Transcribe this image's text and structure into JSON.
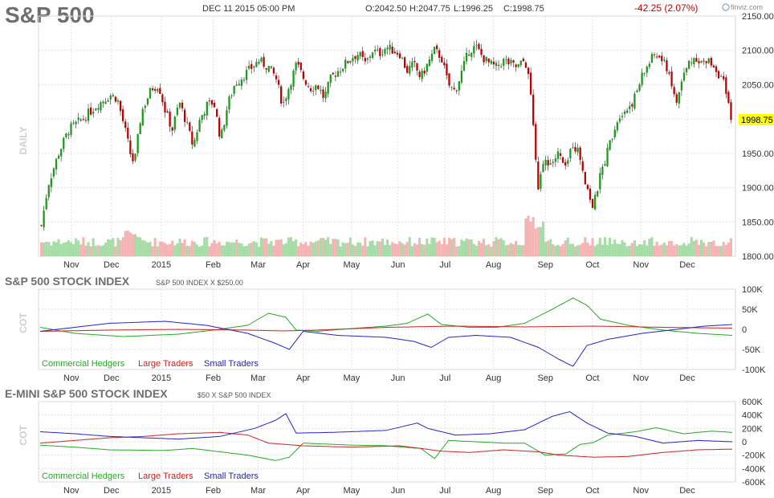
{
  "header": {
    "title": "S&P 500",
    "datetime": "DEC 11 2015 05:00 PM",
    "open": "O:2042.50",
    "high": "H:2047.75",
    "low": "L:1996.25",
    "close": "C:1998.75",
    "change": "-42.25 (2.07%)",
    "logo": "finviz.com",
    "last_price": "1998.75",
    "side_label": "DAILY"
  },
  "colors": {
    "up": "#1a9b1a",
    "down": "#c00000",
    "vol_up": "#a6dca6",
    "vol_down": "#f4b4b4",
    "commercial": "#22aa22",
    "large": "#cc2222",
    "small": "#2222cc",
    "price_tag": "#ffff00"
  },
  "months": [
    {
      "label": "Nov",
      "t": 0.045
    },
    {
      "label": "Dec",
      "t": 0.103
    },
    {
      "label": "2015",
      "t": 0.175
    },
    {
      "label": "Feb",
      "t": 0.25
    },
    {
      "label": "Mar",
      "t": 0.315
    },
    {
      "label": "Apr",
      "t": 0.38
    },
    {
      "label": "May",
      "t": 0.45
    },
    {
      "label": "Jun",
      "t": 0.517
    },
    {
      "label": "Jul",
      "t": 0.585
    },
    {
      "label": "Aug",
      "t": 0.655
    },
    {
      "label": "Sep",
      "t": 0.73
    },
    {
      "label": "Oct",
      "t": 0.798
    },
    {
      "label": "Nov",
      "t": 0.868
    },
    {
      "label": "Dec",
      "t": 0.935
    }
  ],
  "chart_data": [
    {
      "type": "candlestick",
      "name": "S&P 500 daily",
      "ylim": [
        1800,
        2150
      ],
      "yticks": [
        1800,
        1850,
        1900,
        1950,
        2000,
        2050,
        2100,
        2150
      ],
      "ytick_labels": [
        "1800.00",
        "1850.00",
        "1900.00",
        "1950.00",
        "2000.00",
        "2050.00",
        "2100.00",
        "2150.00"
      ],
      "close_path": [
        [
          0.0,
          1845
        ],
        [
          0.01,
          1905
        ],
        [
          0.025,
          1950
        ],
        [
          0.04,
          1985
        ],
        [
          0.06,
          2000
        ],
        [
          0.08,
          2020
        ],
        [
          0.1,
          2035
        ],
        [
          0.11,
          2030
        ],
        [
          0.12,
          1990
        ],
        [
          0.13,
          1945
        ],
        [
          0.135,
          1935
        ],
        [
          0.145,
          2010
        ],
        [
          0.16,
          2045
        ],
        [
          0.17,
          2050
        ],
        [
          0.18,
          2010
        ],
        [
          0.19,
          1985
        ],
        [
          0.2,
          2025
        ],
        [
          0.21,
          1995
        ],
        [
          0.22,
          1960
        ],
        [
          0.23,
          2000
        ],
        [
          0.24,
          2020
        ],
        [
          0.25,
          2025
        ],
        [
          0.26,
          1970
        ],
        [
          0.27,
          2020
        ],
        [
          0.28,
          2050
        ],
        [
          0.3,
          2070
        ],
        [
          0.315,
          2085
        ],
        [
          0.33,
          2075
        ],
        [
          0.34,
          2060
        ],
        [
          0.35,
          2020
        ],
        [
          0.36,
          2050
        ],
        [
          0.37,
          2080
        ],
        [
          0.38,
          2060
        ],
        [
          0.39,
          2045
        ],
        [
          0.4,
          2050
        ],
        [
          0.41,
          2030
        ],
        [
          0.42,
          2060
        ],
        [
          0.44,
          2080
        ],
        [
          0.45,
          2090
        ],
        [
          0.46,
          2095
        ],
        [
          0.47,
          2080
        ],
        [
          0.48,
          2100
        ],
        [
          0.49,
          2095
        ],
        [
          0.5,
          2105
        ],
        [
          0.51,
          2100
        ],
        [
          0.52,
          2095
        ],
        [
          0.53,
          2070
        ],
        [
          0.54,
          2080
        ],
        [
          0.55,
          2060
        ],
        [
          0.56,
          2080
        ],
        [
          0.57,
          2100
        ],
        [
          0.58,
          2090
        ],
        [
          0.59,
          2050
        ],
        [
          0.6,
          2040
        ],
        [
          0.61,
          2070
        ],
        [
          0.62,
          2100
        ],
        [
          0.63,
          2105
        ],
        [
          0.64,
          2090
        ],
        [
          0.65,
          2080
        ],
        [
          0.66,
          2075
        ],
        [
          0.67,
          2085
        ],
        [
          0.68,
          2080
        ],
        [
          0.69,
          2075
        ],
        [
          0.7,
          2085
        ],
        [
          0.705,
          2075
        ],
        [
          0.71,
          2030
        ],
        [
          0.715,
          1960
        ],
        [
          0.72,
          1900
        ],
        [
          0.73,
          1940
        ],
        [
          0.74,
          1935
        ],
        [
          0.75,
          1950
        ],
        [
          0.76,
          1925
        ],
        [
          0.77,
          1965
        ],
        [
          0.78,
          1950
        ],
        [
          0.79,
          1905
        ],
        [
          0.8,
          1870
        ],
        [
          0.81,
          1915
        ],
        [
          0.82,
          1950
        ],
        [
          0.83,
          1985
        ],
        [
          0.84,
          2010
        ],
        [
          0.85,
          2015
        ],
        [
          0.86,
          2030
        ],
        [
          0.87,
          2060
        ],
        [
          0.88,
          2080
        ],
        [
          0.89,
          2095
        ],
        [
          0.9,
          2085
        ],
        [
          0.91,
          2070
        ],
        [
          0.92,
          2020
        ],
        [
          0.93,
          2060
        ],
        [
          0.94,
          2085
        ],
        [
          0.95,
          2090
        ],
        [
          0.96,
          2080
        ],
        [
          0.97,
          2085
        ],
        [
          0.98,
          2070
        ],
        [
          0.99,
          2050
        ],
        [
          1.0,
          1999
        ]
      ],
      "last_close": 1998.75
    },
    {
      "type": "line",
      "title": "S&P 500 STOCK INDEX",
      "subtitle": "S&P 500 INDEX X $250.00",
      "ylim": [
        -100000,
        100000
      ],
      "yticks": [
        100000,
        50000,
        0,
        -50000,
        -100000
      ],
      "ytick_labels": [
        "100K",
        "50K",
        "0",
        "-50K",
        "-100K"
      ],
      "series": [
        {
          "name": "Commercial Hedgers",
          "points": [
            [
              0,
              5000
            ],
            [
              0.05,
              -10000
            ],
            [
              0.12,
              -18000
            ],
            [
              0.2,
              -12000
            ],
            [
              0.25,
              -2000
            ],
            [
              0.3,
              10000
            ],
            [
              0.33,
              40000
            ],
            [
              0.355,
              30000
            ],
            [
              0.37,
              -2000
            ],
            [
              0.4,
              -5000
            ],
            [
              0.45,
              2000
            ],
            [
              0.5,
              8000
            ],
            [
              0.53,
              15000
            ],
            [
              0.56,
              38000
            ],
            [
              0.58,
              12000
            ],
            [
              0.62,
              5000
            ],
            [
              0.66,
              5000
            ],
            [
              0.7,
              15000
            ],
            [
              0.74,
              50000
            ],
            [
              0.77,
              78000
            ],
            [
              0.79,
              60000
            ],
            [
              0.81,
              25000
            ],
            [
              0.85,
              10000
            ],
            [
              0.9,
              -2000
            ],
            [
              0.95,
              -10000
            ],
            [
              1.0,
              -15000
            ]
          ]
        },
        {
          "name": "Large Traders",
          "points": [
            [
              0,
              -5000
            ],
            [
              0.1,
              -2000
            ],
            [
              0.2,
              0
            ],
            [
              0.3,
              -2000
            ],
            [
              0.35,
              -4000
            ],
            [
              0.4,
              -2000
            ],
            [
              0.5,
              5000
            ],
            [
              0.6,
              8000
            ],
            [
              0.7,
              6000
            ],
            [
              0.8,
              8000
            ],
            [
              0.9,
              5000
            ],
            [
              1.0,
              3000
            ]
          ]
        },
        {
          "name": "Small Traders",
          "points": [
            [
              0,
              -5000
            ],
            [
              0.05,
              5000
            ],
            [
              0.1,
              15000
            ],
            [
              0.18,
              20000
            ],
            [
              0.24,
              10000
            ],
            [
              0.3,
              -10000
            ],
            [
              0.34,
              -35000
            ],
            [
              0.36,
              -50000
            ],
            [
              0.38,
              -5000
            ],
            [
              0.43,
              -15000
            ],
            [
              0.5,
              -20000
            ],
            [
              0.54,
              -30000
            ],
            [
              0.565,
              -45000
            ],
            [
              0.59,
              -20000
            ],
            [
              0.63,
              -15000
            ],
            [
              0.68,
              -20000
            ],
            [
              0.72,
              -45000
            ],
            [
              0.75,
              -75000
            ],
            [
              0.77,
              -92000
            ],
            [
              0.79,
              -40000
            ],
            [
              0.82,
              -25000
            ],
            [
              0.87,
              -10000
            ],
            [
              0.92,
              0
            ],
            [
              0.96,
              8000
            ],
            [
              1.0,
              12000
            ]
          ]
        }
      ]
    },
    {
      "type": "line",
      "title": "E-MINI S&P 500 STOCK INDEX",
      "subtitle": "$50 X S&P 500 INDEX",
      "ylim": [
        -600000,
        600000
      ],
      "yticks": [
        600000,
        400000,
        200000,
        0,
        -200000,
        -400000,
        -600000
      ],
      "ytick_labels": [
        "600K",
        "400K",
        "200K",
        "0",
        "-200K",
        "-400K",
        "-600K"
      ],
      "series": [
        {
          "name": "Commercial Hedgers",
          "points": [
            [
              0,
              -50000
            ],
            [
              0.05,
              -80000
            ],
            [
              0.1,
              -120000
            ],
            [
              0.18,
              -130000
            ],
            [
              0.22,
              -100000
            ],
            [
              0.26,
              -150000
            ],
            [
              0.3,
              -200000
            ],
            [
              0.34,
              -280000
            ],
            [
              0.36,
              -230000
            ],
            [
              0.38,
              -20000
            ],
            [
              0.45,
              -50000
            ],
            [
              0.5,
              -60000
            ],
            [
              0.55,
              -100000
            ],
            [
              0.57,
              -250000
            ],
            [
              0.59,
              20000
            ],
            [
              0.63,
              0
            ],
            [
              0.67,
              -20000
            ],
            [
              0.7,
              -20000
            ],
            [
              0.73,
              -200000
            ],
            [
              0.76,
              -180000
            ],
            [
              0.78,
              -40000
            ],
            [
              0.8,
              -10000
            ],
            [
              0.82,
              100000
            ],
            [
              0.86,
              150000
            ],
            [
              0.89,
              210000
            ],
            [
              0.93,
              120000
            ],
            [
              0.97,
              160000
            ],
            [
              1.0,
              140000
            ]
          ]
        },
        {
          "name": "Large Traders",
          "points": [
            [
              0,
              -20000
            ],
            [
              0.05,
              20000
            ],
            [
              0.1,
              60000
            ],
            [
              0.15,
              80000
            ],
            [
              0.2,
              120000
            ],
            [
              0.26,
              140000
            ],
            [
              0.3,
              100000
            ],
            [
              0.33,
              -20000
            ],
            [
              0.38,
              -60000
            ],
            [
              0.45,
              -80000
            ],
            [
              0.52,
              -60000
            ],
            [
              0.58,
              -140000
            ],
            [
              0.62,
              -160000
            ],
            [
              0.67,
              -120000
            ],
            [
              0.72,
              -150000
            ],
            [
              0.75,
              -200000
            ],
            [
              0.8,
              -230000
            ],
            [
              0.85,
              -220000
            ],
            [
              0.9,
              -160000
            ],
            [
              0.95,
              -120000
            ],
            [
              1.0,
              -110000
            ]
          ]
        },
        {
          "name": "Small Traders",
          "points": [
            [
              0,
              150000
            ],
            [
              0.05,
              120000
            ],
            [
              0.1,
              80000
            ],
            [
              0.15,
              60000
            ],
            [
              0.2,
              40000
            ],
            [
              0.26,
              80000
            ],
            [
              0.31,
              200000
            ],
            [
              0.34,
              320000
            ],
            [
              0.355,
              420000
            ],
            [
              0.37,
              130000
            ],
            [
              0.42,
              140000
            ],
            [
              0.5,
              170000
            ],
            [
              0.545,
              280000
            ],
            [
              0.56,
              200000
            ],
            [
              0.6,
              100000
            ],
            [
              0.65,
              120000
            ],
            [
              0.7,
              180000
            ],
            [
              0.74,
              380000
            ],
            [
              0.765,
              450000
            ],
            [
              0.79,
              280000
            ],
            [
              0.82,
              130000
            ],
            [
              0.86,
              80000
            ],
            [
              0.9,
              -20000
            ],
            [
              0.95,
              20000
            ],
            [
              1.0,
              0
            ]
          ]
        }
      ]
    }
  ],
  "cot1": {
    "title": "S&P 500 STOCK INDEX",
    "subtitle": "S&P 500 INDEX X $250.00",
    "side_label": "COT"
  },
  "cot2": {
    "title": "E-MINI S&P 500 STOCK INDEX",
    "subtitle": "$50 X S&P 500 INDEX",
    "side_label": "COT"
  },
  "legend": {
    "commercial": "Commercial Hedgers",
    "large": "Large Traders",
    "small": "Small Traders"
  }
}
